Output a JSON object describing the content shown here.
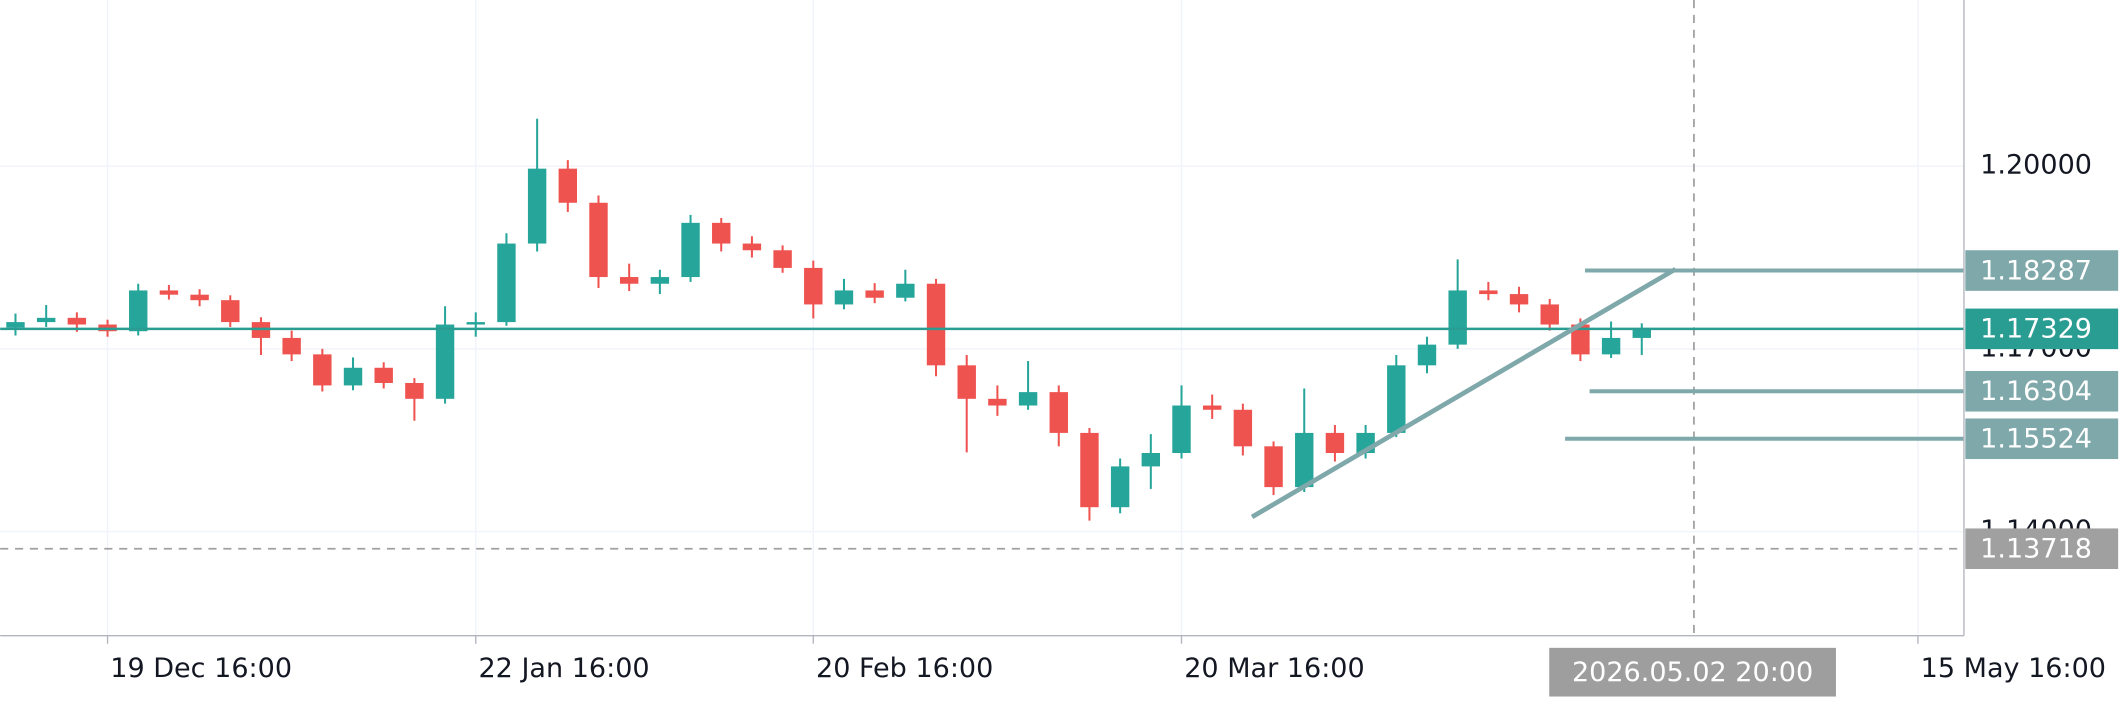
{
  "chart_data": {
    "type": "candlestick",
    "up_color": "#26a69a",
    "down_color": "#ef5350",
    "grid": true,
    "categories": [
      null,
      null,
      null,
      "19 Dec 16:00",
      null,
      null,
      null,
      null,
      null,
      null,
      null,
      null,
      null,
      null,
      null,
      "22 Jan 16:00",
      null,
      null,
      null,
      null,
      null,
      null,
      null,
      null,
      null,
      null,
      "20 Feb 16:00",
      null,
      null,
      null,
      null,
      null,
      null,
      null,
      null,
      null,
      null,
      null,
      "20 Mar 16:00",
      null,
      null,
      null,
      null,
      null,
      null,
      null,
      null,
      null,
      null,
      null,
      null,
      null,
      null,
      null,
      null,
      null,
      null,
      null,
      null,
      null,
      null,
      null,
      "15 May 16:00",
      null
    ],
    "open": [
      1.1735,
      1.1744,
      1.1751,
      1.174,
      1.1729,
      1.1796,
      1.1789,
      1.178,
      1.1744,
      1.1718,
      1.1691,
      1.164,
      1.1669,
      1.1644,
      1.1618,
      1.174,
      1.1744,
      1.1873,
      1.1996,
      1.194,
      1.1818,
      1.1807,
      1.1818,
      1.1907,
      1.1873,
      1.1862,
      1.1833,
      1.1773,
      1.1796,
      1.1784,
      1.1807,
      1.1673,
      1.1618,
      1.1607,
      1.1629,
      1.1562,
      1.144,
      1.1507,
      1.1529,
      1.1607,
      1.16,
      1.154,
      1.1473,
      1.1562,
      1.1529,
      1.1562,
      1.1673,
      1.1707,
      1.1796,
      1.179,
      1.1773,
      1.174,
      1.1691,
      1.1718,
      null,
      null,
      null,
      null,
      null,
      null,
      null,
      null,
      null,
      null
    ],
    "high": [
      1.1758,
      1.1772,
      1.176,
      1.1748,
      1.1807,
      1.1805,
      1.1798,
      1.1788,
      1.1752,
      1.173,
      1.17,
      1.1686,
      1.1678,
      1.1652,
      1.177,
      1.176,
      1.189,
      1.2078,
      1.201,
      1.1952,
      1.184,
      1.183,
      1.192,
      1.1915,
      1.1885,
      1.187,
      1.1845,
      1.1815,
      1.1808,
      1.183,
      1.1815,
      1.169,
      1.164,
      1.168,
      1.164,
      1.157,
      1.152,
      1.156,
      1.164,
      1.1625,
      1.161,
      1.1548,
      1.1635,
      1.1575,
      1.1575,
      1.169,
      1.172,
      1.1847,
      1.181,
      1.1802,
      1.1782,
      1.175,
      1.1745,
      1.1742,
      null,
      null,
      null,
      null,
      null,
      null,
      null,
      null,
      null,
      null
    ],
    "low": [
      1.1722,
      1.1736,
      1.1728,
      1.172,
      1.1722,
      1.1781,
      1.177,
      1.1736,
      1.169,
      1.168,
      1.163,
      1.1632,
      1.1635,
      1.1582,
      1.161,
      1.172,
      1.1738,
      1.186,
      1.1925,
      1.18,
      1.1795,
      1.179,
      1.181,
      1.186,
      1.185,
      1.1825,
      1.175,
      1.1765,
      1.1775,
      1.1778,
      1.1655,
      1.153,
      1.159,
      1.16,
      1.154,
      1.1418,
      1.143,
      1.147,
      1.152,
      1.1585,
      1.1525,
      1.146,
      1.1465,
      1.1515,
      1.152,
      1.1555,
      1.166,
      1.17,
      1.178,
      1.176,
      1.173,
      1.168,
      1.1685,
      1.169,
      null,
      null,
      null,
      null,
      null,
      null,
      null,
      null,
      null,
      null
    ],
    "close": [
      1.1744,
      1.1751,
      1.174,
      1.1729,
      1.1796,
      1.1789,
      1.178,
      1.1744,
      1.1718,
      1.1691,
      1.164,
      1.1669,
      1.1644,
      1.1618,
      1.174,
      1.1744,
      1.1873,
      1.1996,
      1.194,
      1.1818,
      1.1807,
      1.1818,
      1.1907,
      1.1873,
      1.1862,
      1.1833,
      1.1773,
      1.1796,
      1.1784,
      1.1807,
      1.1673,
      1.1618,
      1.1607,
      1.1629,
      1.1562,
      1.144,
      1.1507,
      1.1529,
      1.1607,
      1.16,
      1.154,
      1.1473,
      1.1562,
      1.1529,
      1.1562,
      1.1673,
      1.1707,
      1.1796,
      1.179,
      1.1773,
      1.174,
      1.1691,
      1.1718,
      1.1733,
      null,
      null,
      null,
      null,
      null,
      null,
      null,
      null,
      null,
      null
    ],
    "ylim": [
      1.1229,
      1.2273
    ],
    "yticks": [
      {
        "value": 1.14,
        "label": "1.14000"
      },
      {
        "value": 1.17,
        "label": "1.17000"
      },
      {
        "value": 1.2,
        "label": "1.20000"
      }
    ],
    "levels": [
      {
        "value": 1.18287,
        "color": "#7fa8ab",
        "start_index": 51.15
      },
      {
        "value": 1.16304,
        "color": "#7fa8ab",
        "start_index": 51.3
      },
      {
        "value": 1.15524,
        "color": "#7fa8ab",
        "start_index": 50.5
      }
    ],
    "price_line": {
      "value": 1.17329,
      "color": "#2a9d93"
    },
    "dashed_line": {
      "value": 1.13718,
      "color": "#a0a0a0"
    },
    "trendline": {
      "color": "#7fa8ab",
      "from": {
        "index": 40.3,
        "price": 1.1424
      },
      "to": {
        "index": 54.1,
        "price": 1.1831
      }
    },
    "crosshair": {
      "index": 54.7,
      "label": "2026.05.02 20:00"
    }
  }
}
